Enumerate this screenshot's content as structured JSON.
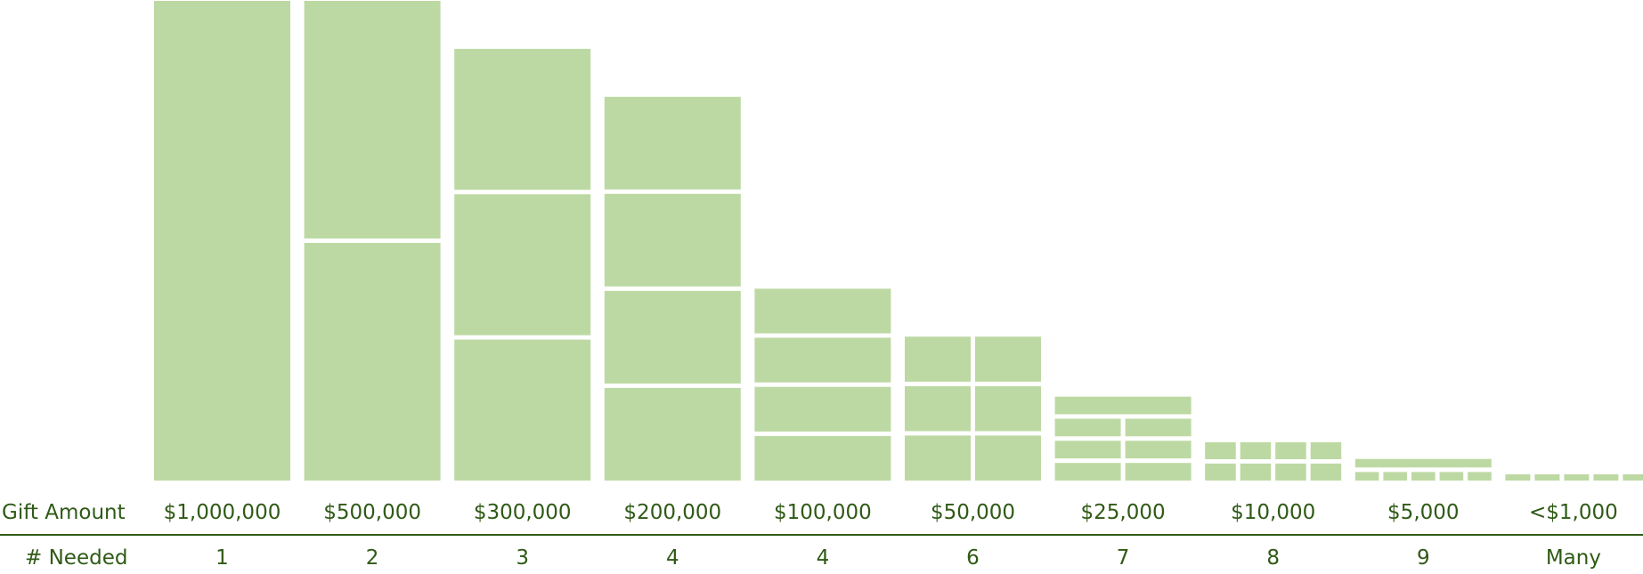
{
  "chart_data": {
    "type": "bar",
    "title": "",
    "row_labels": {
      "amount": "Gift Amount",
      "needed": "# Needed"
    },
    "categories": [
      "$1,000,000",
      "$500,000",
      "$300,000",
      "$200,000",
      "$100,000",
      "$50,000",
      "$25,000",
      "$10,000",
      "$5,000",
      "<$1,000"
    ],
    "needed_labels": [
      "1",
      "2",
      "3",
      "4",
      "4",
      "6",
      "7",
      "8",
      "9",
      "Many"
    ],
    "gift_values": [
      1000000,
      500000,
      300000,
      200000,
      100000,
      50000,
      25000,
      10000,
      5000,
      1000
    ],
    "counts": [
      1,
      2,
      3,
      4,
      4,
      6,
      7,
      8,
      9,
      null
    ],
    "totals": [
      1000000,
      1000000,
      900000,
      800000,
      400000,
      300000,
      175000,
      80000,
      45000,
      null
    ],
    "ylim": [
      0,
      1000000
    ],
    "colors": {
      "bar": "#bdd9a3",
      "text": "#2f5a16",
      "gap": "#ffffff"
    }
  }
}
